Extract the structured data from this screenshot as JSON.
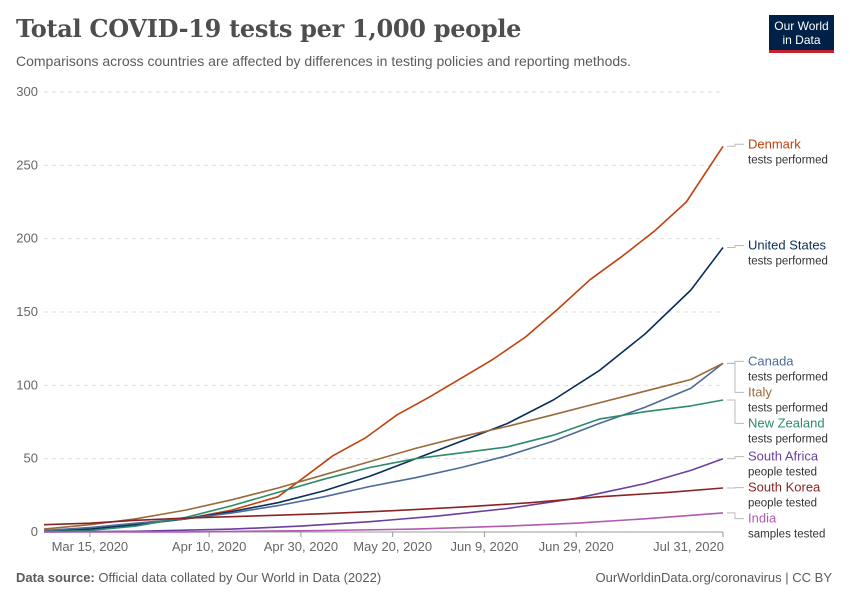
{
  "header": {
    "title": "Total COVID-19 tests per 1,000 people",
    "subtitle": "Comparisons across countries are affected by differences in testing policies and reporting methods.",
    "logo_line1": "Our World",
    "logo_line2": "in Data"
  },
  "footer": {
    "source_label": "Data source:",
    "source_text": "Official data collated by Our World in Data (2022)",
    "right_text": "OurWorldinData.org/coronavirus | CC BY"
  },
  "colors": {
    "grid": "#dddddd",
    "axis_text": "#666666",
    "brand": "#002147",
    "brand_accent": "#c7202e"
  },
  "chart_data": {
    "type": "line",
    "title": "Total COVID-19 tests per 1,000 people",
    "subtitle": "Comparisons across countries are affected by differences in testing policies and reporting methods.",
    "xlabel": "",
    "ylabel": "",
    "ylim": [
      0,
      300
    ],
    "yticks": [
      0,
      50,
      100,
      150,
      200,
      250,
      300
    ],
    "xlim": [
      "2020-03-05",
      "2020-07-31"
    ],
    "xticks": [
      "2020-03-15",
      "2020-04-10",
      "2020-04-30",
      "2020-05-20",
      "2020-06-09",
      "2020-06-29",
      "2020-07-31"
    ],
    "xtick_labels": [
      "Mar 15, 2020",
      "Apr 10, 2020",
      "Apr 30, 2020",
      "May 20, 2020",
      "Jun 9, 2020",
      "Jun 29, 2020",
      "Jul 31, 2020"
    ],
    "grid": true,
    "legend": "right, labels at line ends",
    "series": [
      {
        "name": "Denmark",
        "sublabel": "tests performed",
        "color": "#c2410c",
        "points": [
          [
            "2020-03-05",
            1
          ],
          [
            "2020-03-15",
            2
          ],
          [
            "2020-03-25",
            5
          ],
          [
            "2020-04-05",
            9
          ],
          [
            "2020-04-15",
            15
          ],
          [
            "2020-04-25",
            24
          ],
          [
            "2020-05-01",
            38
          ],
          [
            "2020-05-07",
            52
          ],
          [
            "2020-05-14",
            64
          ],
          [
            "2020-05-21",
            80
          ],
          [
            "2020-05-28",
            92
          ],
          [
            "2020-06-04",
            105
          ],
          [
            "2020-06-11",
            118
          ],
          [
            "2020-06-18",
            133
          ],
          [
            "2020-06-25",
            152
          ],
          [
            "2020-07-02",
            172
          ],
          [
            "2020-07-09",
            188
          ],
          [
            "2020-07-16",
            205
          ],
          [
            "2020-07-23",
            225
          ],
          [
            "2020-07-31",
            263
          ]
        ]
      },
      {
        "name": "United States",
        "sublabel": "tests performed",
        "color": "#0b2e5c",
        "points": [
          [
            "2020-03-05",
            0.5
          ],
          [
            "2020-03-15",
            2
          ],
          [
            "2020-03-25",
            5
          ],
          [
            "2020-04-05",
            9
          ],
          [
            "2020-04-15",
            14
          ],
          [
            "2020-04-25",
            20
          ],
          [
            "2020-05-05",
            28
          ],
          [
            "2020-05-15",
            38
          ],
          [
            "2020-05-25",
            50
          ],
          [
            "2020-06-04",
            62
          ],
          [
            "2020-06-14",
            74
          ],
          [
            "2020-06-24",
            90
          ],
          [
            "2020-07-04",
            110
          ],
          [
            "2020-07-14",
            135
          ],
          [
            "2020-07-24",
            165
          ],
          [
            "2020-07-31",
            194
          ]
        ]
      },
      {
        "name": "Canada",
        "sublabel": "tests performed",
        "color": "#4c6a9c",
        "points": [
          [
            "2020-03-05",
            1
          ],
          [
            "2020-03-15",
            3
          ],
          [
            "2020-03-25",
            6
          ],
          [
            "2020-04-05",
            9
          ],
          [
            "2020-04-15",
            13
          ],
          [
            "2020-04-25",
            18
          ],
          [
            "2020-05-05",
            24
          ],
          [
            "2020-05-15",
            31
          ],
          [
            "2020-05-25",
            37
          ],
          [
            "2020-06-04",
            44
          ],
          [
            "2020-06-14",
            52
          ],
          [
            "2020-06-24",
            62
          ],
          [
            "2020-07-04",
            74
          ],
          [
            "2020-07-14",
            85
          ],
          [
            "2020-07-24",
            98
          ],
          [
            "2020-07-31",
            115
          ]
        ]
      },
      {
        "name": "Italy",
        "sublabel": "tests performed",
        "color": "#9a6a3a",
        "points": [
          [
            "2020-03-05",
            2
          ],
          [
            "2020-03-15",
            5
          ],
          [
            "2020-03-25",
            9
          ],
          [
            "2020-04-05",
            15
          ],
          [
            "2020-04-15",
            22
          ],
          [
            "2020-04-25",
            30
          ],
          [
            "2020-05-05",
            39
          ],
          [
            "2020-05-15",
            48
          ],
          [
            "2020-05-25",
            57
          ],
          [
            "2020-06-04",
            65
          ],
          [
            "2020-06-14",
            72
          ],
          [
            "2020-06-24",
            80
          ],
          [
            "2020-07-04",
            88
          ],
          [
            "2020-07-14",
            96
          ],
          [
            "2020-07-24",
            104
          ],
          [
            "2020-07-31",
            115
          ]
        ]
      },
      {
        "name": "New Zealand",
        "sublabel": "tests performed",
        "color": "#2e8b6a",
        "points": [
          [
            "2020-03-05",
            0.2
          ],
          [
            "2020-03-15",
            1
          ],
          [
            "2020-03-25",
            4
          ],
          [
            "2020-04-05",
            10
          ],
          [
            "2020-04-15",
            18
          ],
          [
            "2020-04-25",
            27
          ],
          [
            "2020-05-05",
            36
          ],
          [
            "2020-05-15",
            44
          ],
          [
            "2020-05-25",
            50
          ],
          [
            "2020-06-04",
            54
          ],
          [
            "2020-06-14",
            58
          ],
          [
            "2020-06-24",
            66
          ],
          [
            "2020-07-04",
            77
          ],
          [
            "2020-07-14",
            82
          ],
          [
            "2020-07-24",
            86
          ],
          [
            "2020-07-31",
            90
          ]
        ]
      },
      {
        "name": "South Africa",
        "sublabel": "people tested",
        "color": "#6b3fa0",
        "points": [
          [
            "2020-03-05",
            0
          ],
          [
            "2020-03-25",
            0.5
          ],
          [
            "2020-04-15",
            2
          ],
          [
            "2020-04-30",
            4
          ],
          [
            "2020-05-15",
            7
          ],
          [
            "2020-05-30",
            11
          ],
          [
            "2020-06-14",
            16
          ],
          [
            "2020-06-29",
            23
          ],
          [
            "2020-07-14",
            33
          ],
          [
            "2020-07-24",
            42
          ],
          [
            "2020-07-31",
            50
          ]
        ]
      },
      {
        "name": "South Korea",
        "sublabel": "people tested",
        "color": "#8b2323",
        "points": [
          [
            "2020-03-05",
            5
          ],
          [
            "2020-03-15",
            6
          ],
          [
            "2020-03-25",
            8
          ],
          [
            "2020-04-05",
            9.5
          ],
          [
            "2020-04-20",
            11
          ],
          [
            "2020-05-05",
            12.5
          ],
          [
            "2020-05-20",
            14.5
          ],
          [
            "2020-06-04",
            17
          ],
          [
            "2020-06-19",
            20
          ],
          [
            "2020-07-04",
            24
          ],
          [
            "2020-07-19",
            27
          ],
          [
            "2020-07-31",
            30
          ]
        ]
      },
      {
        "name": "India",
        "sublabel": "samples tested",
        "color": "#b25ab2",
        "points": [
          [
            "2020-03-05",
            0
          ],
          [
            "2020-04-05",
            0.1
          ],
          [
            "2020-05-05",
            1
          ],
          [
            "2020-05-25",
            2
          ],
          [
            "2020-06-14",
            4
          ],
          [
            "2020-06-29",
            6
          ],
          [
            "2020-07-14",
            9
          ],
          [
            "2020-07-31",
            13
          ]
        ]
      }
    ]
  }
}
